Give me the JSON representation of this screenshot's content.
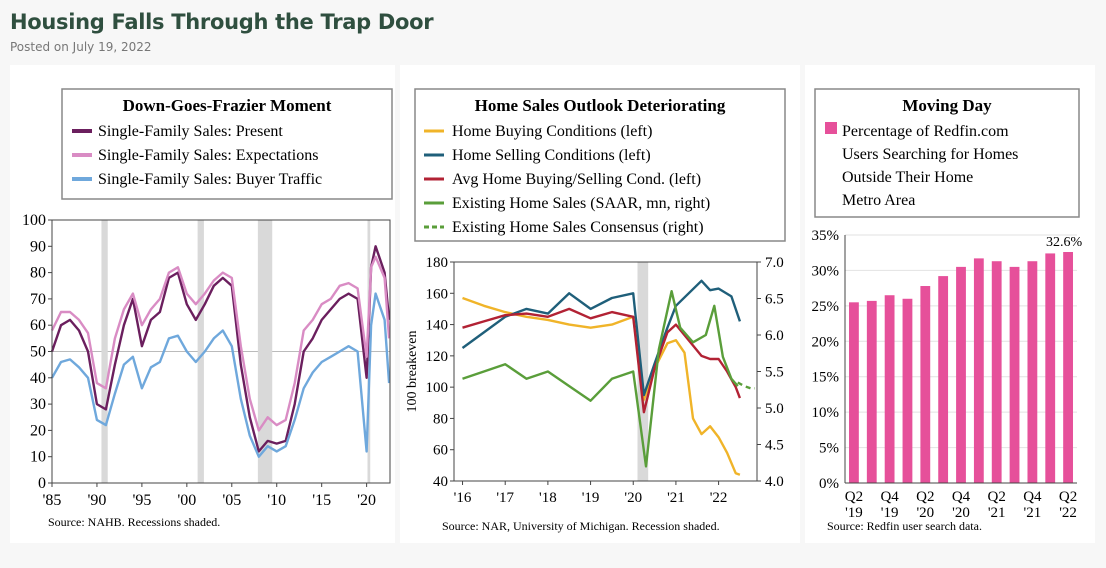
{
  "header": {
    "title": "Housing Falls Through the Trap Door",
    "posted": "Posted on July 19, 2022"
  },
  "chart_data": [
    {
      "type": "line",
      "title": "Down-Goes-Frazier Moment",
      "source": "Source: NAHB. Recessions shaded.",
      "ylim": [
        0,
        100
      ],
      "yticks": [
        0,
        10,
        20,
        30,
        40,
        50,
        60,
        70,
        80,
        90,
        100
      ],
      "xticks": [
        "'85",
        "'90",
        "'95",
        "'00",
        "'05",
        "'10",
        "'15",
        "'20"
      ],
      "xtick_years": [
        1985,
        1990,
        1995,
        2000,
        2005,
        2010,
        2015,
        2020
      ],
      "xlim": [
        1985,
        2022.6
      ],
      "recessions": [
        [
          1990.5,
          1991.2
        ],
        [
          2001.2,
          2001.9
        ],
        [
          2007.9,
          2009.5
        ],
        [
          2020.1,
          2020.4
        ]
      ],
      "reference_line": 50,
      "legend_placement": "top",
      "series": [
        {
          "name": "Single-Family Sales: Present",
          "color": "#6b1f5e",
          "points": [
            [
              1985,
              50
            ],
            [
              1986,
              60
            ],
            [
              1987,
              62
            ],
            [
              1988,
              58
            ],
            [
              1989,
              50
            ],
            [
              1990,
              30
            ],
            [
              1991,
              28
            ],
            [
              1992,
              45
            ],
            [
              1993,
              60
            ],
            [
              1994,
              70
            ],
            [
              1995,
              52
            ],
            [
              1996,
              62
            ],
            [
              1997,
              65
            ],
            [
              1998,
              78
            ],
            [
              1999,
              80
            ],
            [
              2000,
              68
            ],
            [
              2001,
              62
            ],
            [
              2002,
              68
            ],
            [
              2003,
              75
            ],
            [
              2004,
              78
            ],
            [
              2005,
              75
            ],
            [
              2006,
              45
            ],
            [
              2007,
              25
            ],
            [
              2008,
              12
            ],
            [
              2009,
              16
            ],
            [
              2010,
              15
            ],
            [
              2011,
              16
            ],
            [
              2012,
              30
            ],
            [
              2013,
              50
            ],
            [
              2014,
              55
            ],
            [
              2015,
              62
            ],
            [
              2016,
              66
            ],
            [
              2017,
              70
            ],
            [
              2018,
              72
            ],
            [
              2019,
              70
            ],
            [
              2020,
              40
            ],
            [
              2020.5,
              82
            ],
            [
              2021,
              90
            ],
            [
              2022,
              80
            ],
            [
              2022.5,
              62
            ]
          ]
        },
        {
          "name": "Single-Family Sales: Expectations",
          "color": "#d98cc4",
          "points": [
            [
              1985,
              58
            ],
            [
              1986,
              65
            ],
            [
              1987,
              65
            ],
            [
              1988,
              62
            ],
            [
              1989,
              57
            ],
            [
              1990,
              38
            ],
            [
              1991,
              36
            ],
            [
              1992,
              55
            ],
            [
              1993,
              66
            ],
            [
              1994,
              72
            ],
            [
              1995,
              60
            ],
            [
              1996,
              66
            ],
            [
              1997,
              70
            ],
            [
              1998,
              80
            ],
            [
              1999,
              82
            ],
            [
              2000,
              72
            ],
            [
              2001,
              68
            ],
            [
              2002,
              72
            ],
            [
              2003,
              77
            ],
            [
              2004,
              80
            ],
            [
              2005,
              78
            ],
            [
              2006,
              52
            ],
            [
              2007,
              32
            ],
            [
              2008,
              20
            ],
            [
              2009,
              25
            ],
            [
              2010,
              22
            ],
            [
              2011,
              24
            ],
            [
              2012,
              38
            ],
            [
              2013,
              58
            ],
            [
              2014,
              62
            ],
            [
              2015,
              68
            ],
            [
              2016,
              70
            ],
            [
              2017,
              75
            ],
            [
              2018,
              76
            ],
            [
              2019,
              74
            ],
            [
              2020,
              48
            ],
            [
              2020.5,
              82
            ],
            [
              2021,
              86
            ],
            [
              2022,
              78
            ],
            [
              2022.5,
              55
            ]
          ]
        },
        {
          "name": "Single-Family Sales: Buyer Traffic",
          "color": "#6fa8dc",
          "points": [
            [
              1985,
              40
            ],
            [
              1986,
              46
            ],
            [
              1987,
              47
            ],
            [
              1988,
              44
            ],
            [
              1989,
              40
            ],
            [
              1990,
              24
            ],
            [
              1991,
              22
            ],
            [
              1992,
              34
            ],
            [
              1993,
              45
            ],
            [
              1994,
              48
            ],
            [
              1995,
              36
            ],
            [
              1996,
              44
            ],
            [
              1997,
              46
            ],
            [
              1998,
              55
            ],
            [
              1999,
              56
            ],
            [
              2000,
              50
            ],
            [
              2001,
              46
            ],
            [
              2002,
              50
            ],
            [
              2003,
              55
            ],
            [
              2004,
              58
            ],
            [
              2005,
              52
            ],
            [
              2006,
              32
            ],
            [
              2007,
              18
            ],
            [
              2008,
              10
            ],
            [
              2009,
              14
            ],
            [
              2010,
              12
            ],
            [
              2011,
              14
            ],
            [
              2012,
              24
            ],
            [
              2013,
              36
            ],
            [
              2014,
              42
            ],
            [
              2015,
              46
            ],
            [
              2016,
              48
            ],
            [
              2017,
              50
            ],
            [
              2018,
              52
            ],
            [
              2019,
              50
            ],
            [
              2020,
              12
            ],
            [
              2020.5,
              60
            ],
            [
              2021,
              72
            ],
            [
              2022,
              62
            ],
            [
              2022.5,
              38
            ]
          ]
        }
      ]
    },
    {
      "type": "line",
      "title": "Home Sales Outlook Deteriorating",
      "source": "Source: NAR, University of Michigan. Recession shaded.",
      "ylabel": "100 breakeven",
      "ylim": [
        40,
        180
      ],
      "yticks": [
        40,
        60,
        80,
        100,
        120,
        140,
        160,
        180
      ],
      "y2lim": [
        4.0,
        7.0
      ],
      "y2ticks": [
        "4.0",
        "4.5",
        "5.0",
        "5.5",
        "6.0",
        "6.5",
        "7.0"
      ],
      "xticks": [
        "'16",
        "'17",
        "'18",
        "'19",
        "'20",
        "'21",
        "'22"
      ],
      "xtick_years": [
        2016,
        2017,
        2018,
        2019,
        2020,
        2021,
        2022
      ],
      "xlim": [
        2015.8,
        2022.9
      ],
      "recessions": [
        [
          2020.1,
          2020.35
        ]
      ],
      "legend_placement": "top",
      "series": [
        {
          "name": "Home Buying Conditions (left)",
          "color": "#f0b429",
          "axis": "left",
          "points": [
            [
              2016,
              157
            ],
            [
              2016.5,
              152
            ],
            [
              2017,
              148
            ],
            [
              2017.5,
              145
            ],
            [
              2018,
              143
            ],
            [
              2018.5,
              140
            ],
            [
              2019,
              138
            ],
            [
              2019.5,
              140
            ],
            [
              2020,
              145
            ],
            [
              2020.25,
              92
            ],
            [
              2020.5,
              112
            ],
            [
              2020.8,
              128
            ],
            [
              2021,
              130
            ],
            [
              2021.2,
              122
            ],
            [
              2021.4,
              80
            ],
            [
              2021.6,
              70
            ],
            [
              2021.8,
              75
            ],
            [
              2022,
              68
            ],
            [
              2022.2,
              58
            ],
            [
              2022.4,
              45
            ],
            [
              2022.5,
              44
            ]
          ]
        },
        {
          "name": "Home Selling Conditions (left)",
          "color": "#1f5f7a",
          "axis": "left",
          "points": [
            [
              2016,
              125
            ],
            [
              2016.5,
              135
            ],
            [
              2017,
              145
            ],
            [
              2017.5,
              150
            ],
            [
              2018,
              147
            ],
            [
              2018.5,
              160
            ],
            [
              2019,
              150
            ],
            [
              2019.5,
              157
            ],
            [
              2020,
              160
            ],
            [
              2020.25,
              95
            ],
            [
              2020.5,
              115
            ],
            [
              2020.8,
              138
            ],
            [
              2021,
              152
            ],
            [
              2021.3,
              160
            ],
            [
              2021.6,
              168
            ],
            [
              2021.8,
              162
            ],
            [
              2022,
              163
            ],
            [
              2022.3,
              158
            ],
            [
              2022.5,
              142
            ]
          ]
        },
        {
          "name": "Avg Home Buying/Selling Cond. (left)",
          "color": "#b22234",
          "axis": "left",
          "points": [
            [
              2016,
              138
            ],
            [
              2016.5,
              142
            ],
            [
              2017,
              146
            ],
            [
              2017.5,
              147
            ],
            [
              2018,
              145
            ],
            [
              2018.5,
              150
            ],
            [
              2019,
              144
            ],
            [
              2019.5,
              148
            ],
            [
              2020,
              145
            ],
            [
              2020.25,
              84
            ],
            [
              2020.5,
              112
            ],
            [
              2020.8,
              135
            ],
            [
              2021,
              140
            ],
            [
              2021.3,
              130
            ],
            [
              2021.6,
              120
            ],
            [
              2021.8,
              118
            ],
            [
              2022,
              118
            ],
            [
              2022.2,
              110
            ],
            [
              2022.4,
              100
            ],
            [
              2022.5,
              93
            ]
          ]
        },
        {
          "name": "Existing Home Sales (SAAR, mn, right)",
          "color": "#5a9e3a",
          "axis": "right",
          "points": [
            [
              2016,
              5.4
            ],
            [
              2016.5,
              5.5
            ],
            [
              2017,
              5.6
            ],
            [
              2017.5,
              5.4
            ],
            [
              2018,
              5.5
            ],
            [
              2018.5,
              5.3
            ],
            [
              2019,
              5.1
            ],
            [
              2019.5,
              5.4
            ],
            [
              2020,
              5.5
            ],
            [
              2020.3,
              4.2
            ],
            [
              2020.6,
              5.8
            ],
            [
              2020.9,
              6.6
            ],
            [
              2021.1,
              6.1
            ],
            [
              2021.4,
              5.9
            ],
            [
              2021.7,
              6.0
            ],
            [
              2021.9,
              6.4
            ],
            [
              2022.1,
              5.7
            ],
            [
              2022.3,
              5.4
            ],
            [
              2022.45,
              5.3
            ]
          ]
        },
        {
          "name": "Existing Home Sales Consensus (right)",
          "color": "#5a9e3a",
          "axis": "right",
          "dashed": true,
          "points": [
            [
              2022.45,
              5.35
            ],
            [
              2022.6,
              5.3
            ],
            [
              2022.75,
              5.27
            ],
            [
              2022.85,
              5.27
            ]
          ]
        }
      ]
    },
    {
      "type": "bar",
      "title": "Moving Day",
      "source": "Source: Redfin user search data.",
      "legend": [
        "Percentage of Redfin.com",
        "Users Searching for Homes",
        "Outside Their Home",
        "Metro Area"
      ],
      "categories": [
        "Q2 2019",
        "Q3 2019",
        "Q4 2019",
        "Q1 2020",
        "Q2 2020",
        "Q3 2020",
        "Q4 2020",
        "Q1 2021",
        "Q2 2021",
        "Q3 2021",
        "Q4 2021",
        "Q1 2022",
        "Q2 2022"
      ],
      "values": [
        25.5,
        25.7,
        26.5,
        26.0,
        27.8,
        29.2,
        30.5,
        31.7,
        31.3,
        30.5,
        31.3,
        32.4,
        32.6
      ],
      "color": "#e6509a",
      "ylim": [
        0,
        35
      ],
      "yticks": [
        "0%",
        "5%",
        "10%",
        "15%",
        "20%",
        "25%",
        "30%",
        "35%"
      ],
      "xtick_labels": [
        [
          "Q2",
          "'19"
        ],
        [
          "Q4",
          "'19"
        ],
        [
          "Q2",
          "'20"
        ],
        [
          "Q4",
          "'20"
        ],
        [
          "Q2",
          "'21"
        ],
        [
          "Q4",
          "'21"
        ],
        [
          "Q2",
          "'22"
        ]
      ],
      "annotation": "32.6%"
    }
  ]
}
